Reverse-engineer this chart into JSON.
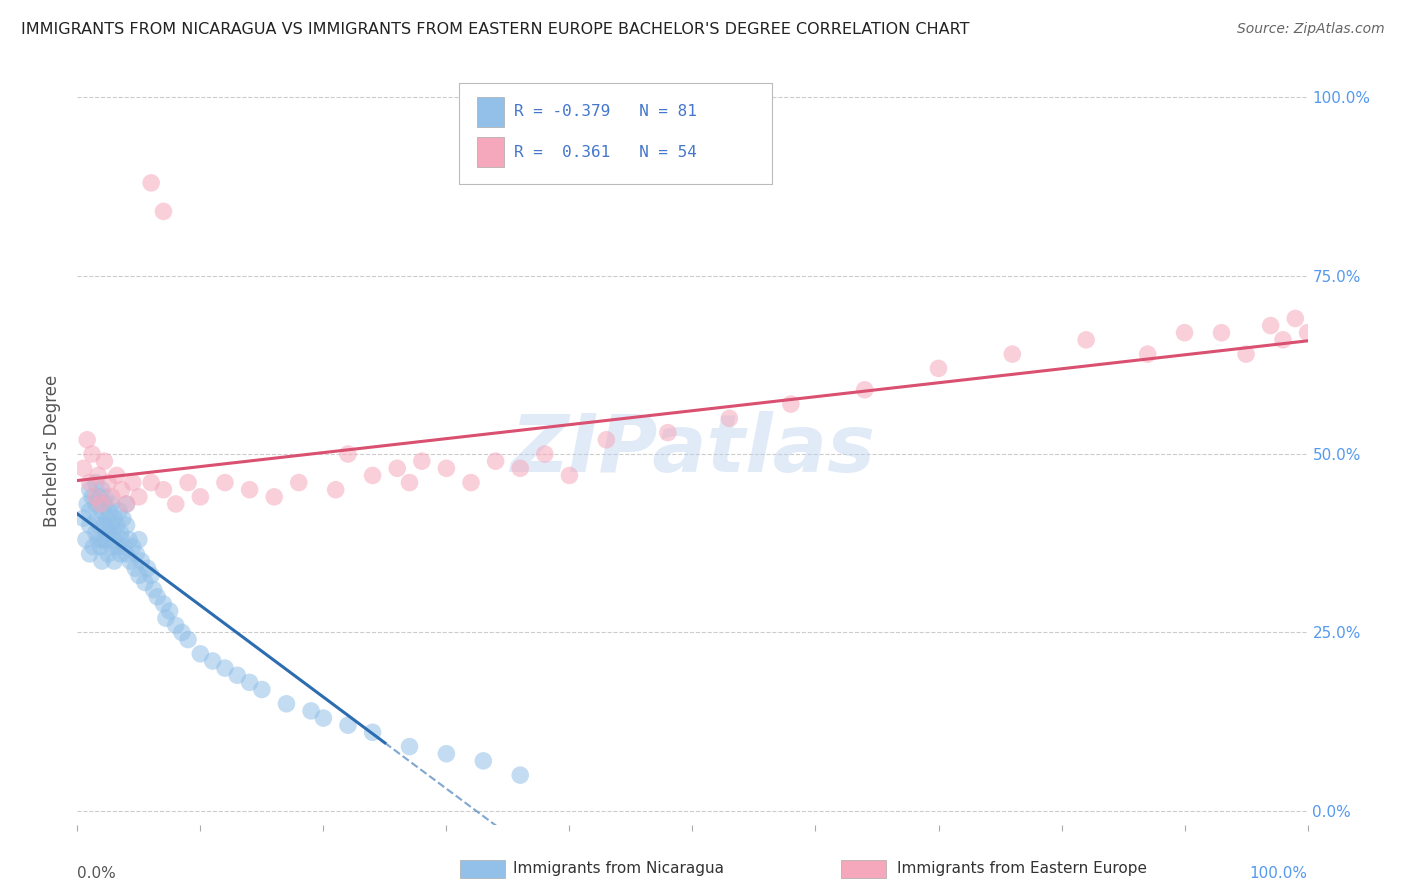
{
  "title": "IMMIGRANTS FROM NICARAGUA VS IMMIGRANTS FROM EASTERN EUROPE BACHELOR'S DEGREE CORRELATION CHART",
  "source": "Source: ZipAtlas.com",
  "ylabel": "Bachelor's Degree",
  "legend_label1": "Immigrants from Nicaragua",
  "legend_label2": "Immigrants from Eastern Europe",
  "R1": -0.379,
  "N1": 81,
  "R2": 0.361,
  "N2": 54,
  "color_blue": "#92C0E8",
  "color_pink": "#F5A8BC",
  "color_blue_line": "#2C6CB0",
  "color_pink_line": "#D95070",
  "watermark": "ZIPatlas",
  "ytick_labels_right": [
    "100.0%",
    "75.0%",
    "50.0%",
    "25.0%"
  ],
  "ytick_values": [
    0.0,
    0.25,
    0.5,
    0.75,
    1.0
  ],
  "xlim": [
    0,
    1.0
  ],
  "ylim": [
    -0.02,
    1.03
  ],
  "background_color": "#FFFFFF",
  "grid_color": "#CCCCCC",
  "title_color": "#222222",
  "source_color": "#666666",
  "right_tick_color": "#5599EE",
  "blue_x": [
    0.005,
    0.007,
    0.008,
    0.01,
    0.01,
    0.01,
    0.01,
    0.012,
    0.013,
    0.015,
    0.015,
    0.015,
    0.016,
    0.017,
    0.018,
    0.018,
    0.019,
    0.02,
    0.02,
    0.02,
    0.02,
    0.022,
    0.022,
    0.023,
    0.023,
    0.024,
    0.025,
    0.025,
    0.026,
    0.027,
    0.028,
    0.028,
    0.029,
    0.03,
    0.03,
    0.03,
    0.032,
    0.033,
    0.034,
    0.035,
    0.035,
    0.036,
    0.037,
    0.038,
    0.04,
    0.04,
    0.04,
    0.042,
    0.043,
    0.045,
    0.047,
    0.048,
    0.05,
    0.05,
    0.052,
    0.055,
    0.057,
    0.06,
    0.062,
    0.065,
    0.07,
    0.072,
    0.075,
    0.08,
    0.085,
    0.09,
    0.1,
    0.11,
    0.12,
    0.13,
    0.14,
    0.15,
    0.17,
    0.19,
    0.2,
    0.22,
    0.24,
    0.27,
    0.3,
    0.33,
    0.36
  ],
  "blue_y": [
    0.41,
    0.38,
    0.43,
    0.45,
    0.4,
    0.36,
    0.42,
    0.44,
    0.37,
    0.46,
    0.39,
    0.43,
    0.41,
    0.38,
    0.44,
    0.4,
    0.37,
    0.45,
    0.42,
    0.38,
    0.35,
    0.43,
    0.4,
    0.44,
    0.38,
    0.41,
    0.39,
    0.36,
    0.42,
    0.4,
    0.37,
    0.43,
    0.39,
    0.41,
    0.38,
    0.35,
    0.4,
    0.37,
    0.42,
    0.39,
    0.36,
    0.38,
    0.41,
    0.37,
    0.4,
    0.36,
    0.43,
    0.38,
    0.35,
    0.37,
    0.34,
    0.36,
    0.38,
    0.33,
    0.35,
    0.32,
    0.34,
    0.33,
    0.31,
    0.3,
    0.29,
    0.27,
    0.28,
    0.26,
    0.25,
    0.24,
    0.22,
    0.21,
    0.2,
    0.19,
    0.18,
    0.17,
    0.15,
    0.14,
    0.13,
    0.12,
    0.11,
    0.09,
    0.08,
    0.07,
    0.05
  ],
  "pink_x": [
    0.005,
    0.008,
    0.01,
    0.012,
    0.015,
    0.017,
    0.019,
    0.022,
    0.025,
    0.028,
    0.032,
    0.036,
    0.04,
    0.045,
    0.05,
    0.06,
    0.07,
    0.08,
    0.09,
    0.1,
    0.12,
    0.14,
    0.16,
    0.18,
    0.21,
    0.24,
    0.27,
    0.3,
    0.34,
    0.38,
    0.43,
    0.48,
    0.53,
    0.58,
    0.64,
    0.7,
    0.76,
    0.82,
    0.87,
    0.9,
    0.93,
    0.95,
    0.97,
    0.98,
    0.99,
    1.0,
    0.06,
    0.07,
    0.22,
    0.26,
    0.28,
    0.32,
    0.36,
    0.4
  ],
  "pink_y": [
    0.48,
    0.52,
    0.46,
    0.5,
    0.44,
    0.47,
    0.43,
    0.49,
    0.46,
    0.44,
    0.47,
    0.45,
    0.43,
    0.46,
    0.44,
    0.46,
    0.45,
    0.43,
    0.46,
    0.44,
    0.46,
    0.45,
    0.44,
    0.46,
    0.45,
    0.47,
    0.46,
    0.48,
    0.49,
    0.5,
    0.52,
    0.53,
    0.55,
    0.57,
    0.59,
    0.62,
    0.64,
    0.66,
    0.64,
    0.67,
    0.67,
    0.64,
    0.68,
    0.66,
    0.69,
    0.67,
    0.88,
    0.84,
    0.5,
    0.48,
    0.49,
    0.46,
    0.48,
    0.47
  ]
}
